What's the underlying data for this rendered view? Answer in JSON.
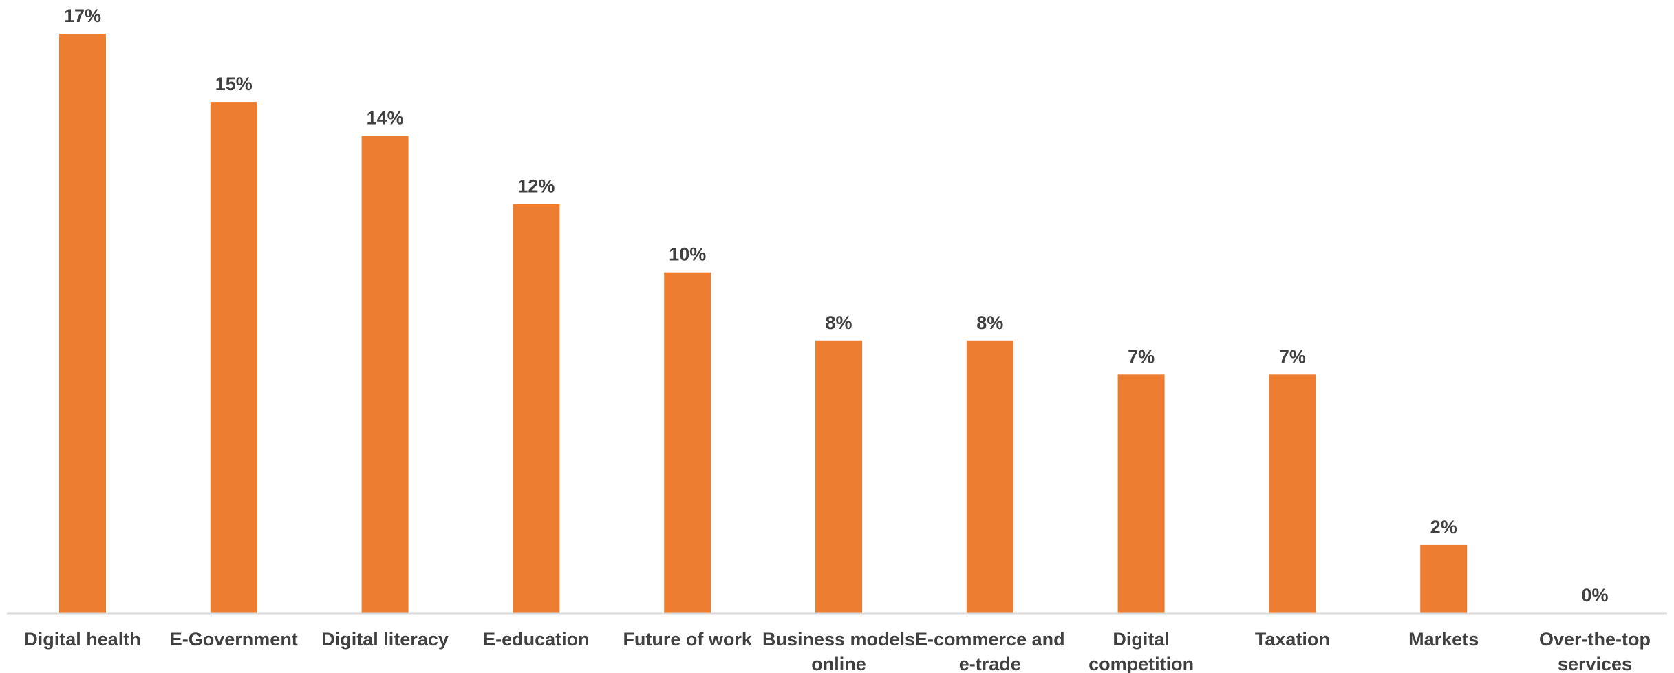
{
  "colors": {
    "bar": "#ED7D31",
    "axis": "#D9D9D9",
    "text": "#404040"
  },
  "chart_data": {
    "type": "bar",
    "title": "",
    "xlabel": "",
    "ylabel": "",
    "ylim": [
      0,
      17
    ],
    "grid": false,
    "legend": "none",
    "categories": [
      [
        "Digital health"
      ],
      [
        "E-Government"
      ],
      [
        "Digital literacy"
      ],
      [
        "E-education"
      ],
      [
        "Future of work"
      ],
      [
        "Business models",
        "online"
      ],
      [
        "E-commerce and",
        "e-trade"
      ],
      [
        "Digital",
        "competition"
      ],
      [
        "Taxation"
      ],
      [
        "Markets"
      ],
      [
        "Over-the-top",
        "services"
      ]
    ],
    "values": [
      17,
      15,
      14,
      12,
      10,
      8,
      8,
      7,
      7,
      2,
      0
    ],
    "value_labels": [
      "17%",
      "15%",
      "14%",
      "12%",
      "10%",
      "8%",
      "8%",
      "7%",
      "7%",
      "2%",
      "0%"
    ]
  }
}
